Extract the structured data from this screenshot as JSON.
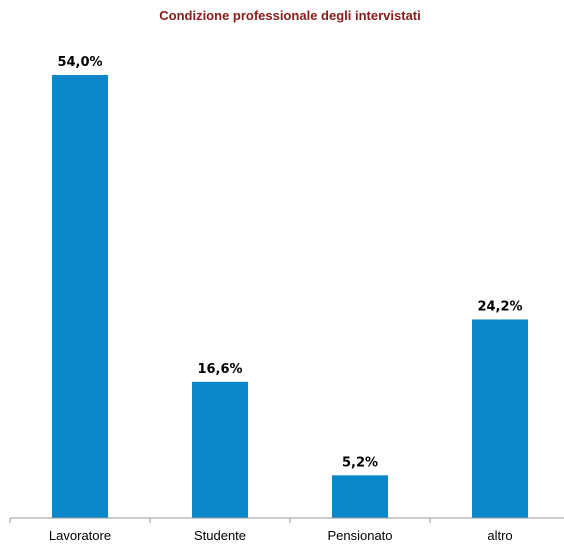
{
  "chart_data": {
    "type": "bar",
    "title": "Condizione professionale degli intervistati",
    "categories": [
      "Lavoratore",
      "Studente",
      "Pensionato",
      "altro"
    ],
    "values": [
      54.0,
      16.6,
      5.2,
      24.2
    ],
    "value_labels": [
      "54,0%",
      "16,6%",
      "5,2%",
      "24,2%"
    ],
    "xlabel": "",
    "ylabel": "",
    "ylim": [
      0,
      54.0
    ],
    "grid": false,
    "legend": "none",
    "colors": {
      "bar": "#0A87C8",
      "title": "#8B1A1A"
    }
  }
}
